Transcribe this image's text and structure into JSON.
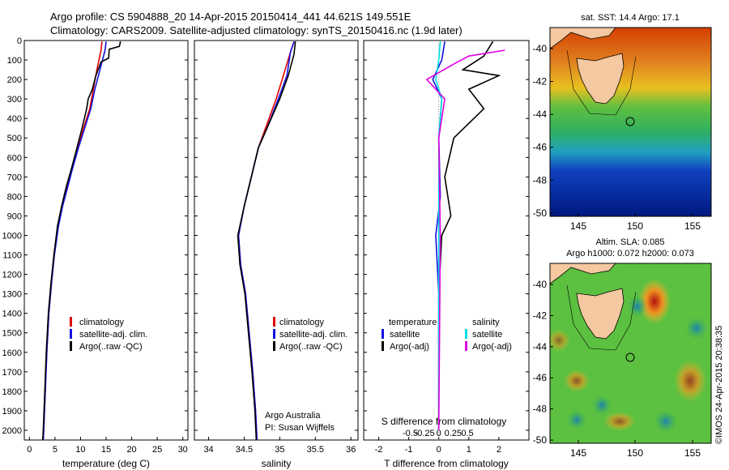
{
  "header": {
    "line1": "Argo profile: CS 5904888_20 14-Apr-2015 20150414_441 44.621S 149.551E",
    "line2": "Climatology: CARS2009. Satellite-adjusted climatology: synTS_20150416.nc (1.9d later)"
  },
  "colors": {
    "climatology": "#e00000",
    "satellite": "#1010e0",
    "argo": "#000000",
    "sat_sal": "#00e0e0",
    "argo_sal": "#e000e0",
    "land": "#f4c8a0"
  },
  "chart_data": [
    {
      "type": "line",
      "name": "temperature",
      "xlabel": "temperature (deg C)",
      "ylabel": "",
      "xlim": [
        -1,
        31
      ],
      "ylim": [
        2050,
        0
      ],
      "xticks": [
        0,
        5,
        10,
        15,
        20,
        25,
        30
      ],
      "xtick_labels": [
        "0",
        "5",
        "10",
        "15",
        "20",
        "25",
        "30"
      ],
      "yticks": [
        0,
        100,
        200,
        300,
        400,
        500,
        600,
        700,
        800,
        900,
        1000,
        1100,
        1200,
        1300,
        1400,
        1500,
        1600,
        1700,
        1800,
        1900,
        2000
      ],
      "ytick_labels": [
        "0",
        "100",
        "200",
        "300",
        "400",
        "500",
        "600",
        "700",
        "800",
        "900",
        "1000",
        "1100",
        "1200",
        "1300",
        "1400",
        "1500",
        "1600",
        "1700",
        "1800",
        "1900",
        "2000"
      ],
      "legend": [
        "climatology",
        "satellite-adj. clim.",
        "Argo(..raw -QC)"
      ],
      "series": [
        {
          "name": "climatology",
          "color": "#e00000",
          "points": [
            [
              14.2,
              5
            ],
            [
              14.0,
              50
            ],
            [
              13.2,
              150
            ],
            [
              12.5,
              250
            ],
            [
              11.8,
              350
            ],
            [
              10.6,
              450
            ],
            [
              9.5,
              550
            ],
            [
              8.4,
              650
            ],
            [
              7.4,
              750
            ],
            [
              6.4,
              850
            ],
            [
              5.6,
              950
            ],
            [
              4.8,
              1100
            ],
            [
              4.3,
              1250
            ],
            [
              3.8,
              1400
            ],
            [
              3.4,
              1600
            ],
            [
              3.1,
              1800
            ],
            [
              2.8,
              2000
            ],
            [
              2.7,
              2050
            ]
          ]
        },
        {
          "name": "satellite-adj. clim.",
          "color": "#1010e0",
          "points": [
            [
              15.0,
              5
            ],
            [
              14.8,
              50
            ],
            [
              13.8,
              150
            ],
            [
              12.8,
              250
            ],
            [
              12.0,
              350
            ],
            [
              10.8,
              450
            ],
            [
              9.6,
              550
            ],
            [
              8.5,
              650
            ],
            [
              7.5,
              750
            ],
            [
              6.5,
              850
            ],
            [
              5.7,
              950
            ],
            [
              4.9,
              1100
            ],
            [
              4.3,
              1250
            ],
            [
              3.8,
              1400
            ],
            [
              3.4,
              1600
            ],
            [
              3.1,
              1800
            ],
            [
              2.8,
              2000
            ],
            [
              2.7,
              2050
            ]
          ]
        },
        {
          "name": "Argo(..raw -QC)",
          "color": "#000000",
          "points": [
            [
              17.8,
              5
            ],
            [
              17.6,
              30
            ],
            [
              15.6,
              45
            ],
            [
              15.5,
              90
            ],
            [
              14.0,
              110
            ],
            [
              13.0,
              180
            ],
            [
              12.3,
              250
            ],
            [
              11.5,
              300
            ],
            [
              11.2,
              350
            ],
            [
              10.3,
              450
            ],
            [
              9.2,
              560
            ],
            [
              8.3,
              650
            ],
            [
              7.2,
              750
            ],
            [
              6.3,
              850
            ],
            [
              5.5,
              950
            ],
            [
              4.8,
              1100
            ],
            [
              4.2,
              1250
            ],
            [
              3.7,
              1400
            ],
            [
              3.3,
              1600
            ],
            [
              3.0,
              1800
            ],
            [
              2.7,
              2000
            ],
            [
              2.6,
              2050
            ]
          ]
        }
      ]
    },
    {
      "type": "line",
      "name": "salinity",
      "xlabel": "salinity",
      "xlim": [
        33.8,
        36.1
      ],
      "ylim": [
        2050,
        0
      ],
      "xticks": [
        34,
        34.5,
        35,
        35.5,
        36
      ],
      "xtick_labels": [
        "34",
        "34.5",
        "35",
        "35.5",
        "36"
      ],
      "legend": [
        "climatology",
        "satellite-adj. clim.",
        "Argo(..raw -QC)"
      ],
      "annotation_lines": [
        "Argo Australia",
        "PI: Susan Wijffels"
      ],
      "series": [
        {
          "name": "climatology",
          "color": "#e00000",
          "points": [
            [
              35.2,
              5
            ],
            [
              35.15,
              60
            ],
            [
              35.05,
              180
            ],
            [
              34.95,
              300
            ],
            [
              34.8,
              450
            ],
            [
              34.7,
              550
            ],
            [
              34.6,
              700
            ],
            [
              34.5,
              850
            ],
            [
              34.42,
              1000
            ],
            [
              34.45,
              1150
            ],
            [
              34.52,
              1300
            ],
            [
              34.57,
              1500
            ],
            [
              34.62,
              1700
            ],
            [
              34.66,
              1900
            ],
            [
              34.68,
              2050
            ]
          ]
        },
        {
          "name": "satellite-adj. clim.",
          "color": "#1010e0",
          "points": [
            [
              35.2,
              5
            ],
            [
              35.15,
              60
            ],
            [
              35.1,
              180
            ],
            [
              34.98,
              300
            ],
            [
              34.82,
              450
            ],
            [
              34.7,
              550
            ],
            [
              34.6,
              700
            ],
            [
              34.5,
              850
            ],
            [
              34.42,
              1000
            ],
            [
              34.45,
              1150
            ],
            [
              34.52,
              1300
            ],
            [
              34.57,
              1500
            ],
            [
              34.62,
              1700
            ],
            [
              34.66,
              1900
            ],
            [
              34.68,
              2050
            ]
          ]
        },
        {
          "name": "Argo(..raw -QC)",
          "color": "#000000",
          "points": [
            [
              35.22,
              5
            ],
            [
              35.2,
              70
            ],
            [
              35.12,
              180
            ],
            [
              35.0,
              300
            ],
            [
              34.82,
              450
            ],
            [
              34.7,
              550
            ],
            [
              34.6,
              700
            ],
            [
              34.5,
              850
            ],
            [
              34.41,
              1000
            ],
            [
              34.44,
              1150
            ],
            [
              34.51,
              1300
            ],
            [
              34.56,
              1500
            ],
            [
              34.61,
              1700
            ],
            [
              34.65,
              1900
            ],
            [
              34.67,
              2050
            ]
          ]
        }
      ]
    },
    {
      "type": "line",
      "name": "difference",
      "xlabel": "T difference from climatology",
      "xlabel_top": "S difference from climatology",
      "xlim": [
        -2.5,
        3.0
      ],
      "ylim": [
        2050,
        0
      ],
      "xticks": [
        -2,
        -1,
        0,
        1,
        2
      ],
      "xtick_labels": [
        "-2",
        "-1",
        "0",
        "1",
        "2"
      ],
      "sticks": [
        -0.5,
        -0.25,
        0,
        0.25,
        0.5
      ],
      "stick_labels": [
        "-0.5",
        "-0.25",
        "0",
        "0.25",
        "0.5"
      ],
      "legend_temperature_title": "temperature",
      "legend_salinity_title": "salinity",
      "legend_entries": [
        "satellite",
        "Argo(-adj)",
        "satellite",
        "Argo(-adj)"
      ],
      "series": [
        {
          "name": "T satellite",
          "color": "#1010e0",
          "points": [
            [
              0.2,
              5
            ],
            [
              0.1,
              100
            ],
            [
              -0.2,
              200
            ],
            [
              0.1,
              300
            ],
            [
              0.0,
              500
            ],
            [
              0.05,
              800
            ],
            [
              -0.1,
              1000
            ],
            [
              0.0,
              1300
            ],
            [
              0.0,
              2000
            ]
          ]
        },
        {
          "name": "T Argo(-adj)",
          "color": "#000000",
          "points": [
            [
              1.8,
              5
            ],
            [
              1.5,
              80
            ],
            [
              0.8,
              150
            ],
            [
              2.0,
              180
            ],
            [
              1.0,
              250
            ],
            [
              1.5,
              350
            ],
            [
              0.5,
              500
            ],
            [
              0.2,
              700
            ],
            [
              0.4,
              900
            ],
            [
              0.1,
              1000
            ],
            [
              0.0,
              1300
            ],
            [
              0.0,
              2000
            ]
          ]
        },
        {
          "name": "S satellite",
          "color": "#00e0e0",
          "points": [
            [
              0.05,
              5
            ],
            [
              0.0,
              100
            ],
            [
              -0.1,
              200
            ],
            [
              0.1,
              300
            ],
            [
              0.0,
              500
            ],
            [
              0.0,
              2000
            ]
          ]
        },
        {
          "name": "S Argo(-adj)",
          "color": "#e000e0",
          "points": [
            [
              2.2,
              50
            ],
            [
              1.0,
              80
            ],
            [
              0.5,
              120
            ],
            [
              -0.4,
              200
            ],
            [
              0.2,
              300
            ],
            [
              0.0,
              500
            ],
            [
              0.05,
              1000
            ],
            [
              0.0,
              2000
            ]
          ]
        }
      ]
    }
  ],
  "maps": {
    "sst": {
      "title": "sat. SST: 14.4 Argo: 17.1",
      "yticks": [
        "-40",
        "-42",
        "-44",
        "-46",
        "-48",
        "-50"
      ],
      "xticks": [
        "145",
        "150",
        "155"
      ]
    },
    "sla": {
      "title_line1": "Altim. SLA: 0.085",
      "title_line2": "Argo h1000: 0.072 h2000: 0.073",
      "yticks": [
        "-40",
        "-42",
        "-44",
        "-46",
        "-48",
        "-50"
      ],
      "xticks": [
        "145",
        "150",
        "155"
      ],
      "credit": "©IMOS 24-Apr-2015 20:38:35"
    }
  }
}
